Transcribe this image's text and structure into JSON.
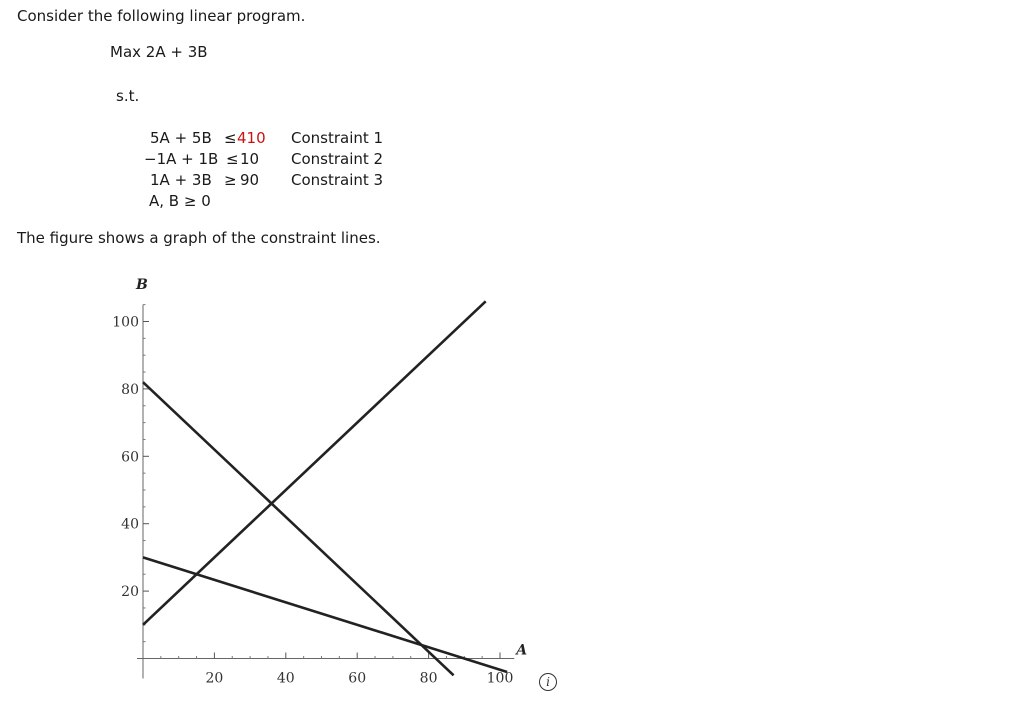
{
  "intro": "Consider the following linear program.",
  "objective": "Max  2A + 3B",
  "st": "s.t.",
  "constraints": [
    {
      "lhs": "5A + 5B",
      "sign": "≤",
      "rhs": "410",
      "label": "Constraint 1"
    },
    {
      "lhs": "−1A + 1B",
      "sign": "≤",
      "rhs": "10",
      "label": "Constraint 2"
    },
    {
      "lhs": "1A + 3B",
      "sign": "≥",
      "rhs": "90",
      "label": "Constraint 3"
    }
  ],
  "nonneg": "A, B ≥ 0",
  "figure_caption": "The figure shows a graph of the constraint lines.",
  "info_icon": "i",
  "colors": {
    "highlight": "#cc1111",
    "line": "#222222"
  },
  "chart_data": {
    "type": "line",
    "xlabel": "A",
    "ylabel": "B",
    "xlim": [
      0,
      104
    ],
    "ylim": [
      0,
      105
    ],
    "x_ticks": [
      20,
      40,
      60,
      80,
      100
    ],
    "y_ticks": [
      20,
      40,
      60,
      80,
      100
    ],
    "series": [
      {
        "points": [
          [
            0,
            82
          ],
          [
            87,
            -5
          ]
        ]
      },
      {
        "points": [
          [
            0,
            10
          ],
          [
            96,
            106
          ]
        ]
      },
      {
        "points": [
          [
            0,
            30
          ],
          [
            102,
            -4
          ]
        ]
      }
    ]
  }
}
